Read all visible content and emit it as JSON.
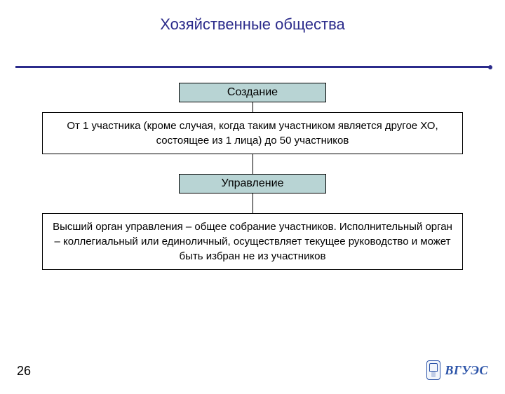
{
  "title": "Хозяйственные общества",
  "title_color": "#2b2b8b",
  "title_fontsize": 22,
  "page_number": "26",
  "logo_text": "ВГУЭС",
  "logo_color": "#2b53a8",
  "flow": {
    "type": "flowchart",
    "background_color": "#ffffff",
    "header_fill": "#b8d4d4",
    "border_color": "#000000",
    "nodes": [
      {
        "id": "h1",
        "kind": "header",
        "label": "Создание"
      },
      {
        "id": "b1",
        "kind": "body",
        "label": "От 1 участника (кроме случая, когда таким участником является другое ХО, состоящее из 1 лица) до 50 участников"
      },
      {
        "id": "h2",
        "kind": "header",
        "label": "Управление"
      },
      {
        "id": "b2",
        "kind": "body",
        "label": "Высший орган управления – общее собрание участников. Исполнительный орган – коллегиальный или единоличный, осуществляет текущее руководство и может быть избран не из участников"
      }
    ],
    "edges": [
      {
        "from": "h1",
        "to": "b1",
        "len": "sm"
      },
      {
        "from": "b1",
        "to": "h2",
        "len": "lg"
      },
      {
        "from": "h2",
        "to": "b2",
        "len": "lg"
      }
    ]
  }
}
